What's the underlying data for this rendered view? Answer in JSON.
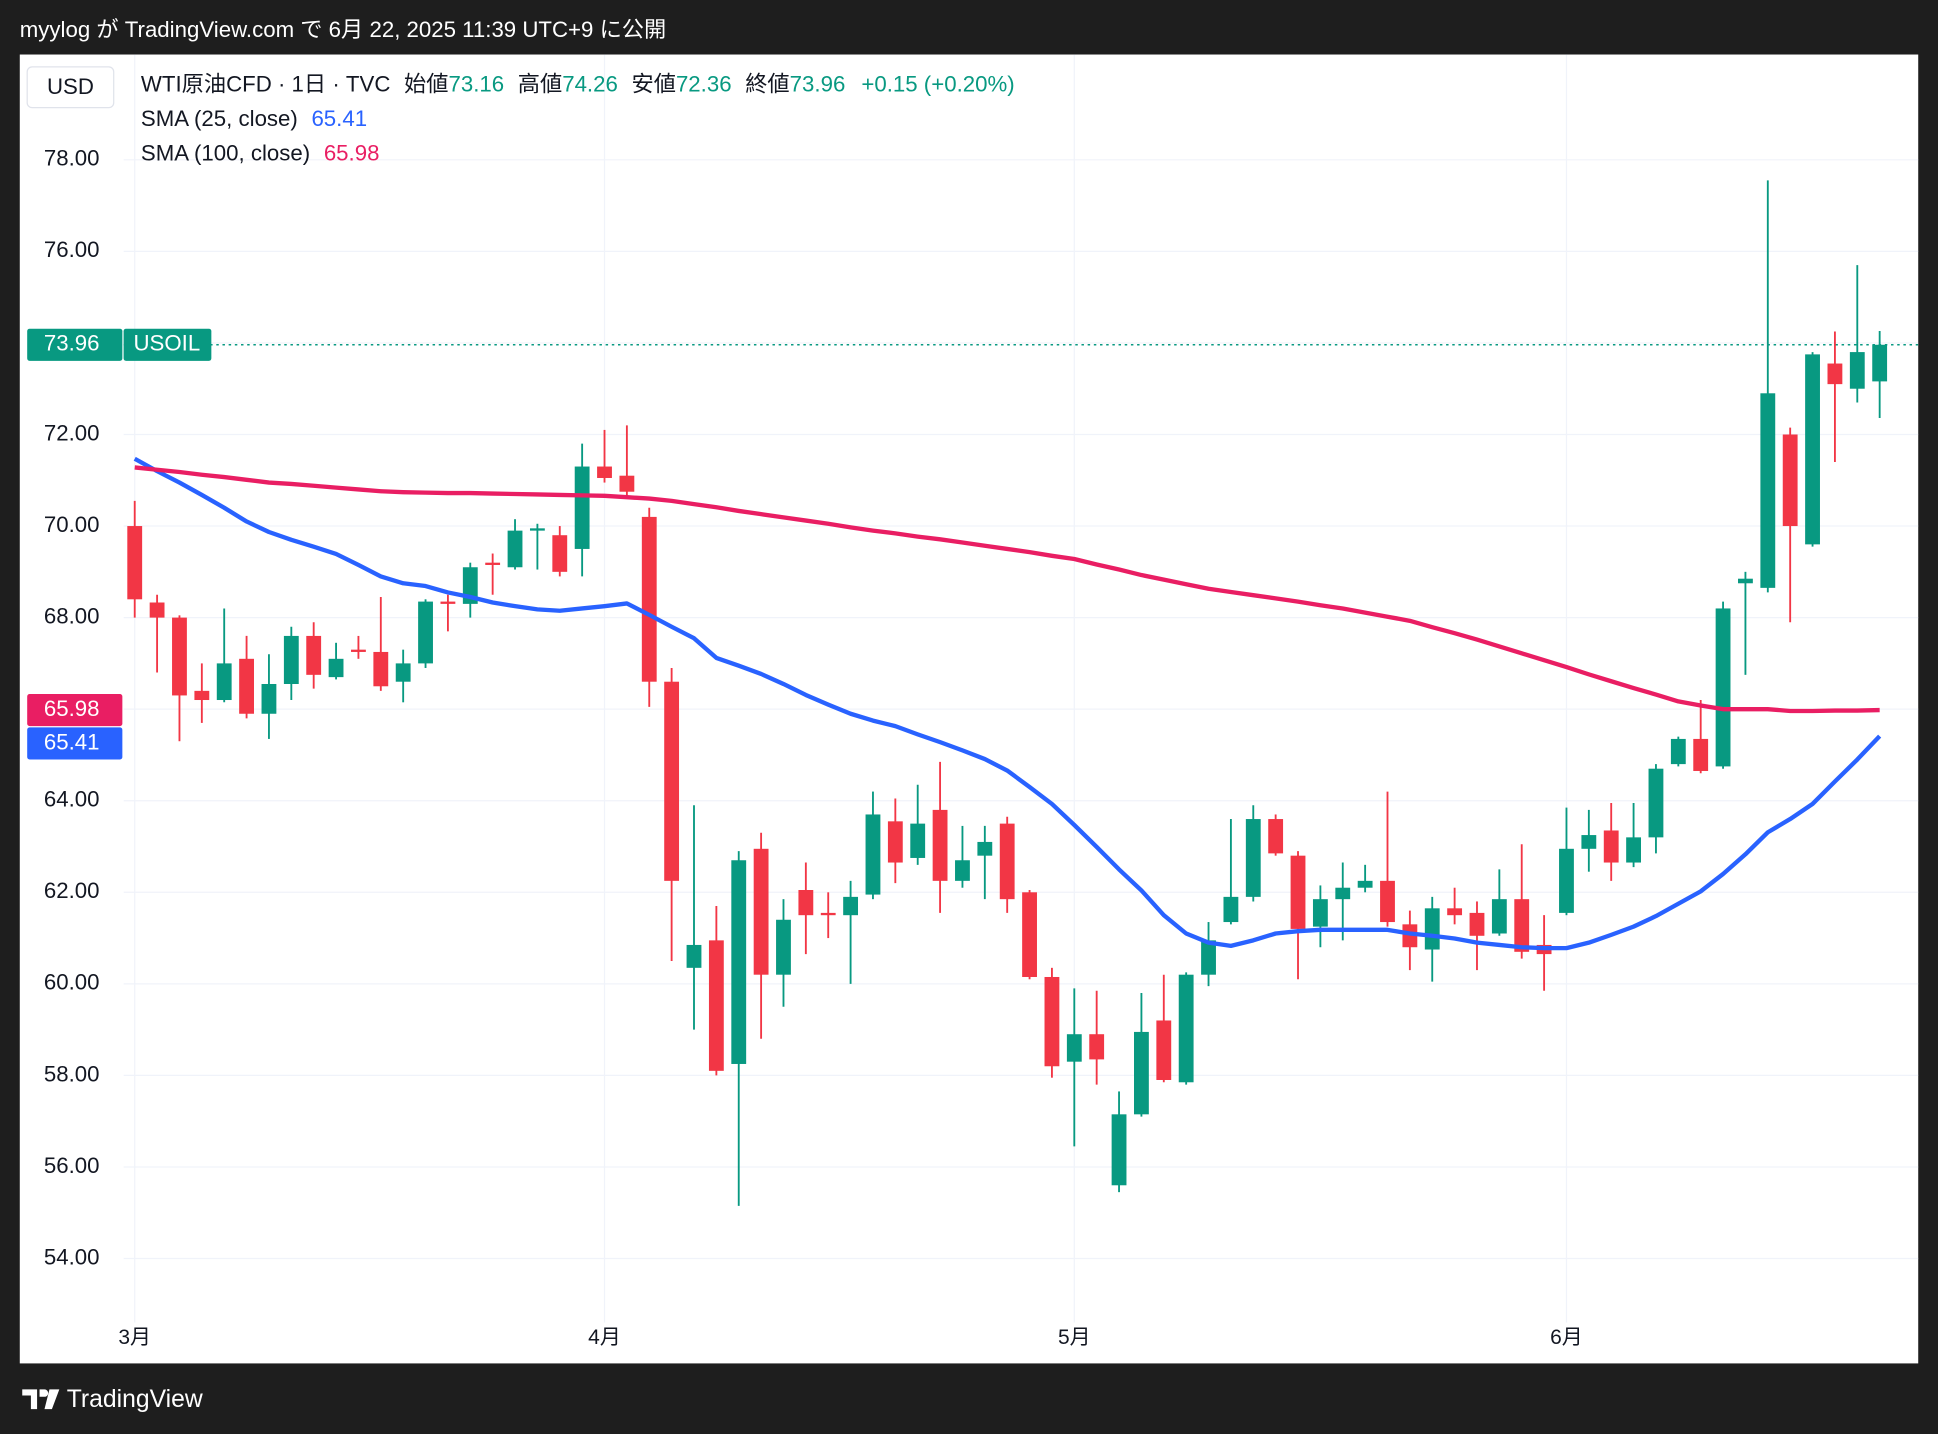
{
  "page": {
    "header": "myylog が TradingView.com で 6月 22, 2025 11:39 UTC+9 に公開",
    "brand": "TradingView"
  },
  "chart_data": {
    "type": "candlestick",
    "title": "WTI原油CFD · 1日 · TVC",
    "currency": "USD",
    "symbol": "USOIL",
    "ohlc_names": {
      "open": "始値",
      "high": "高値",
      "low": "安値",
      "close": "終値"
    },
    "change_label": "+0.15 (+0.20%)",
    "up_color": "#089981",
    "down_color": "#f23645",
    "categories": [
      "3月",
      null,
      null,
      null,
      null,
      null,
      null,
      null,
      null,
      null,
      null,
      null,
      null,
      null,
      null,
      null,
      null,
      null,
      null,
      null,
      null,
      "4月",
      null,
      null,
      null,
      null,
      null,
      null,
      null,
      null,
      null,
      null,
      null,
      null,
      null,
      null,
      null,
      null,
      null,
      null,
      null,
      null,
      "5月",
      null,
      null,
      null,
      null,
      null,
      null,
      null,
      null,
      null,
      null,
      null,
      null,
      null,
      null,
      null,
      null,
      null,
      null,
      null,
      null,
      null,
      "6月",
      null,
      null,
      null,
      null,
      null,
      null,
      null,
      null,
      null,
      null,
      null,
      null,
      null,
      null
    ],
    "open": [
      70.0,
      68.33,
      68.0,
      66.4,
      66.2,
      67.1,
      65.9,
      66.55,
      67.6,
      66.7,
      67.3,
      67.25,
      66.6,
      67.0,
      68.35,
      68.3,
      69.2,
      69.1,
      69.9,
      69.8,
      69.5,
      71.3,
      71.1,
      70.2,
      66.6,
      60.35,
      60.95,
      58.25,
      62.95,
      60.2,
      62.05,
      61.55,
      61.5,
      61.95,
      63.55,
      62.75,
      63.8,
      62.25,
      62.8,
      63.5,
      62.0,
      60.15,
      58.3,
      58.9,
      55.6,
      57.15,
      59.2,
      57.85,
      60.2,
      61.35,
      61.9,
      63.6,
      62.8,
      61.25,
      61.85,
      62.1,
      62.25,
      61.3,
      60.75,
      61.65,
      61.55,
      61.1,
      61.85,
      60.85,
      61.55,
      62.95,
      63.35,
      62.65,
      63.2,
      64.8,
      65.35,
      64.75,
      68.75,
      68.65,
      72.0,
      69.6,
      73.55,
      73.0,
      73.16
    ],
    "high": [
      70.55,
      68.5,
      68.05,
      67.0,
      68.2,
      67.6,
      67.2,
      67.8,
      67.9,
      67.45,
      67.6,
      68.45,
      67.3,
      68.4,
      68.5,
      69.2,
      69.4,
      70.15,
      70.05,
      70.0,
      71.8,
      72.1,
      72.2,
      70.4,
      66.9,
      63.9,
      61.7,
      62.9,
      63.3,
      61.85,
      62.65,
      62.0,
      62.25,
      64.2,
      64.05,
      64.35,
      64.85,
      63.45,
      63.45,
      63.65,
      62.05,
      60.35,
      59.9,
      59.85,
      57.65,
      59.8,
      60.2,
      60.25,
      61.35,
      63.6,
      63.9,
      63.7,
      62.9,
      62.15,
      62.65,
      62.6,
      64.2,
      61.6,
      61.9,
      62.1,
      61.8,
      62.5,
      63.05,
      61.5,
      63.85,
      63.8,
      63.95,
      63.95,
      64.8,
      65.4,
      66.2,
      68.35,
      69.0,
      77.55,
      72.15,
      73.8,
      74.25,
      75.7,
      74.26
    ],
    "low": [
      68.0,
      66.8,
      65.3,
      65.7,
      66.15,
      65.8,
      65.35,
      66.2,
      66.45,
      66.65,
      67.1,
      66.4,
      66.15,
      66.9,
      67.7,
      68.0,
      68.5,
      69.05,
      69.05,
      68.9,
      68.9,
      70.95,
      70.6,
      66.05,
      60.5,
      59.0,
      58.0,
      55.15,
      58.8,
      59.5,
      60.65,
      61.0,
      60.0,
      61.85,
      62.2,
      62.6,
      61.55,
      62.1,
      61.85,
      61.55,
      60.1,
      57.95,
      56.45,
      57.8,
      55.45,
      57.1,
      57.85,
      57.8,
      59.95,
      61.3,
      61.8,
      62.8,
      60.1,
      60.8,
      60.95,
      62.0,
      61.25,
      60.3,
      60.05,
      61.3,
      60.3,
      61.05,
      60.55,
      59.85,
      61.5,
      62.45,
      62.25,
      62.55,
      62.85,
      64.75,
      64.6,
      64.7,
      66.75,
      68.55,
      67.9,
      69.55,
      71.4,
      72.7,
      72.36
    ],
    "close": [
      68.4,
      68.0,
      66.3,
      66.2,
      67.0,
      65.9,
      66.55,
      67.6,
      66.75,
      67.1,
      67.25,
      66.5,
      67.0,
      68.35,
      68.3,
      69.1,
      69.15,
      69.9,
      69.95,
      69.0,
      71.3,
      71.05,
      70.75,
      66.6,
      62.25,
      60.85,
      58.1,
      62.7,
      60.2,
      61.4,
      61.5,
      61.5,
      61.9,
      63.7,
      62.65,
      63.5,
      62.25,
      62.7,
      63.1,
      61.85,
      60.15,
      58.2,
      58.9,
      58.35,
      57.15,
      58.95,
      57.9,
      60.2,
      60.95,
      61.9,
      63.6,
      62.85,
      61.2,
      61.85,
      62.1,
      62.25,
      61.35,
      60.8,
      61.65,
      61.5,
      61.05,
      61.85,
      60.7,
      60.65,
      62.95,
      63.25,
      62.65,
      63.2,
      64.7,
      65.35,
      64.65,
      68.2,
      68.85,
      72.9,
      70.0,
      73.75,
      73.1,
      73.8,
      73.96
    ],
    "series": [
      {
        "name": "SMA (25, close)",
        "color": "#2962ff",
        "values": [
          71.47,
          71.2,
          70.95,
          70.68,
          70.4,
          70.1,
          69.87,
          69.7,
          69.55,
          69.39,
          69.15,
          68.9,
          68.75,
          68.69,
          68.55,
          68.45,
          68.33,
          68.25,
          68.18,
          68.15,
          68.2,
          68.25,
          68.31,
          68.06,
          67.8,
          67.55,
          67.12,
          66.95,
          66.77,
          66.55,
          66.31,
          66.1,
          65.9,
          65.75,
          65.63,
          65.45,
          65.28,
          65.1,
          64.91,
          64.66,
          64.3,
          63.93,
          63.47,
          62.99,
          62.5,
          62.04,
          61.5,
          61.1,
          60.9,
          60.83,
          60.95,
          61.1,
          61.15,
          61.18,
          61.18,
          61.18,
          61.18,
          61.1,
          61.05,
          60.99,
          60.9,
          60.85,
          60.8,
          60.78,
          60.78,
          60.9,
          61.07,
          61.25,
          61.48,
          61.75,
          62.02,
          62.4,
          62.83,
          63.31,
          63.6,
          63.93,
          64.42,
          64.9,
          65.41
        ]
      },
      {
        "name": "SMA (100, close)",
        "color": "#e91e63",
        "values": [
          71.28,
          71.23,
          71.18,
          71.12,
          71.07,
          71.01,
          70.95,
          70.92,
          70.88,
          70.84,
          70.8,
          70.76,
          70.74,
          70.73,
          70.72,
          70.72,
          70.71,
          70.7,
          70.69,
          70.68,
          70.67,
          70.66,
          70.63,
          70.6,
          70.55,
          70.48,
          70.41,
          70.33,
          70.26,
          70.19,
          70.12,
          70.05,
          69.97,
          69.9,
          69.84,
          69.77,
          69.71,
          69.64,
          69.57,
          69.5,
          69.43,
          69.35,
          69.28,
          69.16,
          69.05,
          68.93,
          68.83,
          68.73,
          68.63,
          68.56,
          68.49,
          68.42,
          68.35,
          68.27,
          68.2,
          68.11,
          68.02,
          67.93,
          67.79,
          67.66,
          67.52,
          67.37,
          67.22,
          67.07,
          66.92,
          66.76,
          66.61,
          66.46,
          66.32,
          66.17,
          66.08,
          66.0,
          66.0,
          66.0,
          65.96,
          65.96,
          65.97,
          65.97,
          65.98
        ]
      }
    ],
    "ylim": [
      52.6,
      80.3
    ],
    "yticks": [
      {
        "value": 54,
        "label": "54.00"
      },
      {
        "value": 56,
        "label": "56.00"
      },
      {
        "value": 58,
        "label": "58.00"
      },
      {
        "value": 60,
        "label": "60.00"
      },
      {
        "value": 62,
        "label": "62.00"
      },
      {
        "value": 64,
        "label": "64.00"
      },
      {
        "value": 66,
        "label": "66.00"
      },
      {
        "value": 68,
        "label": "68.00"
      },
      {
        "value": 70,
        "label": "70.00"
      },
      {
        "value": 72,
        "label": "72.00"
      },
      {
        "value": 74,
        "label": "74.00"
      },
      {
        "value": 76,
        "label": "76.00"
      },
      {
        "value": 78,
        "label": "78.00"
      }
    ],
    "grid": true
  }
}
